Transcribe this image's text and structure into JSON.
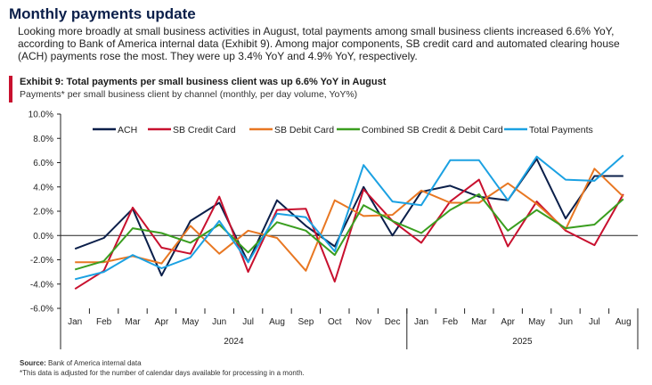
{
  "header": {
    "title": "Monthly payments update",
    "paragraph": "Looking more broadly at small business activities in August, total payments among small business clients increased 6.6% YoY, according to Bank of America internal data (Exhibit 9). Among major components, SB credit card and automated clearing house (ACH) payments rose the most. They were up 3.4% YoY and 4.9% YoY, respectively."
  },
  "exhibit": {
    "title": "Exhibit 9: Total payments per small business client was up 6.6% YoY in August",
    "subtitle": "Payments* per small business client by channel (monthly, per day volume, YoY%)"
  },
  "footer": {
    "source_label": "Source:",
    "source_text": " Bank of America internal data",
    "note": "*This data is adjusted for the number of calendar days available for processing in a month."
  },
  "colors": {
    "ach": "#0b1f4a",
    "sb_credit": "#c8102e",
    "sb_debit": "#e87722",
    "combined": "#3a9e1f",
    "total": "#1ba1e2"
  },
  "chart_data": {
    "type": "line",
    "categories": [
      "Jan",
      "Feb",
      "Mar",
      "Apr",
      "May",
      "Jun",
      "Jul",
      "Aug",
      "Sep",
      "Oct",
      "Nov",
      "Dec",
      "Jan",
      "Feb",
      "Mar",
      "Apr",
      "May",
      "Jun",
      "Jul",
      "Aug"
    ],
    "year_groups": [
      {
        "label": "2024",
        "start": 0,
        "end": 11
      },
      {
        "label": "2025",
        "start": 12,
        "end": 19
      }
    ],
    "ylim": [
      -6,
      10
    ],
    "yticks": [
      -6,
      -4,
      -2,
      0,
      2,
      4,
      6,
      8,
      10
    ],
    "ytick_labels": [
      "-6.0%",
      "-4.0%",
      "-2.0%",
      "0.0%",
      "2.0%",
      "4.0%",
      "6.0%",
      "8.0%",
      "10.0%"
    ],
    "legend_position": "top",
    "series": [
      {
        "key": "ach",
        "name": "ACH",
        "values": [
          -1.1,
          -0.2,
          2.2,
          -3.3,
          1.2,
          2.7,
          -2.2,
          2.9,
          0.8,
          -0.9,
          4.0,
          0.0,
          3.6,
          4.1,
          3.2,
          2.9,
          6.3,
          1.4,
          4.9,
          4.9
        ]
      },
      {
        "key": "sb_credit",
        "name": "SB Credit Card",
        "values": [
          -4.4,
          -2.9,
          2.3,
          -1.0,
          -1.5,
          3.2,
          -3.0,
          2.1,
          2.2,
          -3.8,
          3.8,
          1.2,
          -0.6,
          2.8,
          4.6,
          -0.9,
          2.8,
          0.4,
          -0.8,
          3.4
        ]
      },
      {
        "key": "sb_debit",
        "name": "SB Debit Card",
        "values": [
          -2.2,
          -2.2,
          -1.7,
          -2.3,
          0.8,
          -1.5,
          0.4,
          -0.2,
          -2.9,
          2.9,
          1.6,
          1.7,
          3.7,
          2.7,
          2.7,
          4.3,
          2.6,
          0.5,
          5.5,
          3.2
        ]
      },
      {
        "key": "combined",
        "name": "Combined SB Credit & Debit Card",
        "values": [
          -2.8,
          -2.1,
          0.6,
          0.2,
          -0.6,
          0.9,
          -1.4,
          1.1,
          0.4,
          -1.6,
          2.5,
          1.2,
          0.2,
          2.1,
          3.4,
          0.4,
          2.1,
          0.6,
          0.9,
          3.0
        ]
      },
      {
        "key": "total",
        "name": "Total Payments",
        "values": [
          -3.6,
          -3.0,
          -1.6,
          -2.7,
          -1.8,
          1.2,
          -2.2,
          1.8,
          1.5,
          -1.3,
          5.8,
          2.8,
          2.5,
          6.2,
          6.2,
          2.9,
          6.5,
          4.6,
          4.5,
          6.6
        ]
      }
    ]
  }
}
